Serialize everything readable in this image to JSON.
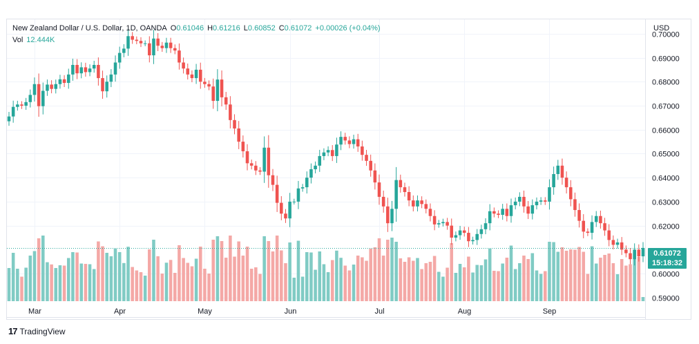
{
  "legend": {
    "symbol": "New Zealand Dollar / U.S. Dollar, 1D, OANDA",
    "open_label": "O",
    "open": "0.61046",
    "high_label": "H",
    "high": "0.61216",
    "low_label": "L",
    "low": "0.60852",
    "close_label": "C",
    "close": "0.61072",
    "change": "+0.00026 (+0.04%)",
    "vol_label": "Vol",
    "vol": "12.444K"
  },
  "currency": "USD",
  "price_tag": {
    "price": "0.61072",
    "countdown": "15:18:32"
  },
  "brand": {
    "logo_text": "17",
    "name": "TradingView"
  },
  "colors": {
    "up": "#26a69a",
    "down": "#ef5350",
    "vol_up": "#80cbc4",
    "vol_down": "#f4a8a6",
    "grid": "#f0f3fa"
  },
  "chart_data": {
    "type": "candlestick",
    "symbol": "NZDUSD",
    "x_ticks": [
      "Mar",
      "Apr",
      "May",
      "Jun",
      "Jul",
      "Aug",
      "Sep"
    ],
    "x_tick_index": [
      6,
      26,
      46,
      66,
      87,
      107,
      127
    ],
    "y_ticks": [
      "0.70000",
      "0.69000",
      "0.68000",
      "0.67000",
      "0.66000",
      "0.65000",
      "0.64000",
      "0.63000",
      "0.62000",
      "0.60000",
      "0.59000"
    ],
    "ylim": [
      0.5885,
      0.706
    ],
    "grid": true,
    "last_price": 0.61072,
    "closes": [
      0.6655,
      0.6695,
      0.6705,
      0.67,
      0.6715,
      0.6745,
      0.679,
      0.6698,
      0.6762,
      0.6788,
      0.677,
      0.679,
      0.681,
      0.6795,
      0.683,
      0.687,
      0.6835,
      0.686,
      0.684,
      0.6855,
      0.687,
      0.6815,
      0.676,
      0.68,
      0.683,
      0.688,
      0.692,
      0.6938,
      0.699,
      0.6975,
      0.697,
      0.696,
      0.696,
      0.691,
      0.698,
      0.695,
      0.694,
      0.6963,
      0.694,
      0.693,
      0.688,
      0.6855,
      0.683,
      0.6815,
      0.685,
      0.68,
      0.679,
      0.678,
      0.672,
      0.6809,
      0.6735,
      0.6705,
      0.664,
      0.6605,
      0.655,
      0.651,
      0.646,
      0.645,
      0.643,
      0.6425,
      0.6525,
      0.641,
      0.637,
      0.6295,
      0.625,
      0.623,
      0.63,
      0.63,
      0.6355,
      0.636,
      0.64,
      0.6435,
      0.645,
      0.649,
      0.6505,
      0.6515,
      0.649,
      0.6538,
      0.657,
      0.6555,
      0.654,
      0.656,
      0.653,
      0.6495,
      0.647,
      0.643,
      0.638,
      0.632,
      0.628,
      0.621,
      0.627,
      0.639,
      0.636,
      0.634,
      0.6305,
      0.628,
      0.6305,
      0.629,
      0.627,
      0.624,
      0.6205,
      0.621,
      0.6215,
      0.62,
      0.615,
      0.616,
      0.618,
      0.617,
      0.6135,
      0.614,
      0.6165,
      0.6185,
      0.621,
      0.626,
      0.625,
      0.6245,
      0.627,
      0.624,
      0.6285,
      0.63,
      0.632,
      0.628,
      0.625,
      0.6285,
      0.63,
      0.6305,
      0.63,
      0.636,
      0.6415,
      0.645,
      0.64,
      0.636,
      0.631,
      0.6265,
      0.622,
      0.6175,
      0.617,
      0.6215,
      0.624,
      0.621,
      0.618,
      0.614,
      0.612,
      0.613,
      0.61,
      0.6085,
      0.606,
      0.61,
      0.6072,
      0.6107
    ]
  }
}
